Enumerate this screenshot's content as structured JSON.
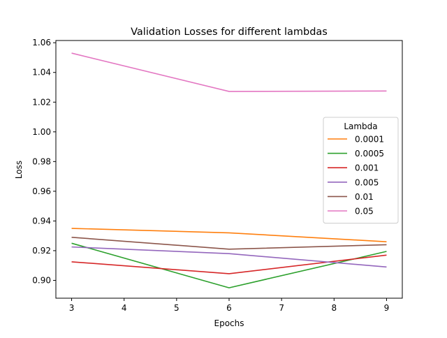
{
  "chart_data": {
    "type": "line",
    "title": "Validation Losses for different lambdas",
    "xlabel": "Epochs",
    "ylabel": "Loss",
    "x": [
      3,
      6,
      9
    ],
    "xlim": [
      2.7,
      9.3
    ],
    "ylim": [
      0.888,
      1.0615
    ],
    "xticks": [
      3,
      4,
      5,
      6,
      7,
      8,
      9
    ],
    "yticks": [
      0.9,
      0.92,
      0.94,
      0.96,
      0.98,
      1.0,
      1.02,
      1.04,
      1.06
    ],
    "grid": false,
    "legend": {
      "title": "Lambda",
      "placement": "center-right"
    },
    "series": [
      {
        "name": "0.0001",
        "color": "#ff7f0e",
        "values": [
          0.935,
          0.932,
          0.926
        ]
      },
      {
        "name": "0.0005",
        "color": "#2ca02c",
        "values": [
          0.925,
          0.895,
          0.9195
        ]
      },
      {
        "name": "0.001",
        "color": "#d62728",
        "values": [
          0.9125,
          0.9045,
          0.917
        ]
      },
      {
        "name": "0.005",
        "color": "#9467bd",
        "values": [
          0.9225,
          0.918,
          0.909
        ]
      },
      {
        "name": "0.01",
        "color": "#8c564b",
        "values": [
          0.929,
          0.921,
          0.924
        ]
      },
      {
        "name": "0.05",
        "color": "#e377c2",
        "values": [
          1.053,
          1.0272,
          1.0275
        ]
      }
    ]
  }
}
